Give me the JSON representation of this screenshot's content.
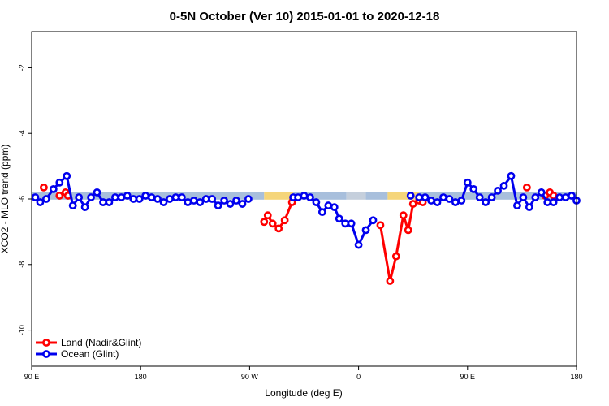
{
  "chart_data": {
    "type": "line",
    "title": "0-5N October (Ver 10)   2015-01-01 to 2020-12-18",
    "xlabel": "Longitude (deg E)",
    "ylabel": "XCO2 - MLO trend (ppm)",
    "xlim": [
      90,
      540
    ],
    "ylim": [
      -11.1,
      -0.9
    ],
    "x_ticks": [
      {
        "value": 90,
        "label": "90 E"
      },
      {
        "value": 180,
        "label": "180"
      },
      {
        "value": 270,
        "label": "90 W"
      },
      {
        "value": 360,
        "label": "0"
      },
      {
        "value": 450,
        "label": "90 E"
      },
      {
        "value": 540,
        "label": "180"
      }
    ],
    "y_ticks": [
      {
        "value": -2,
        "label": "-2"
      },
      {
        "value": -4,
        "label": "-4"
      },
      {
        "value": -6,
        "label": "-6"
      },
      {
        "value": -8,
        "label": "-8"
      },
      {
        "value": -10,
        "label": "-10"
      }
    ],
    "grid": false,
    "legend_position": "bottom-left",
    "band": {
      "y_center": -5.9,
      "half_width": 0.12,
      "segments": [
        {
          "from": 90,
          "to": 282,
          "color": "#a8bfdc"
        },
        {
          "from": 282,
          "to": 306,
          "color": "#f5d57a"
        },
        {
          "from": 306,
          "to": 350,
          "color": "#a8bfdc"
        },
        {
          "from": 350,
          "to": 366,
          "color": "#c5cfdc"
        },
        {
          "from": 366,
          "to": 384,
          "color": "#a8bfdc"
        },
        {
          "from": 384,
          "to": 410,
          "color": "#f5d57a"
        },
        {
          "from": 410,
          "to": 540,
          "color": "#a8bfdc"
        }
      ]
    },
    "series": [
      {
        "name": "Land (Nadir&Glint)",
        "color": "#ff0000",
        "segments": [
          [
            [
              100,
              -5.65
            ]
          ],
          [
            [
              113,
              -5.9
            ],
            [
              118,
              -5.8
            ],
            [
              120,
              -5.9
            ]
          ],
          [
            [
              282,
              -6.7
            ],
            [
              285,
              -6.5
            ],
            [
              289,
              -6.75
            ],
            [
              294,
              -6.9
            ],
            [
              299,
              -6.65
            ],
            [
              305,
              -6.1
            ]
          ],
          [
            [
              378,
              -6.8
            ],
            [
              386,
              -8.5
            ],
            [
              391,
              -7.75
            ],
            [
              397,
              -6.5
            ],
            [
              401,
              -6.95
            ],
            [
              405,
              -6.15
            ],
            [
              410,
              -6.05
            ],
            [
              413,
              -6.1
            ]
          ],
          [
            [
              499,
              -5.65
            ]
          ],
          [
            [
              514,
              -5.9
            ],
            [
              518,
              -5.8
            ],
            [
              521,
              -5.9
            ]
          ]
        ]
      },
      {
        "name": "Ocean (Glint)",
        "color": "#0000ee",
        "segments": [
          [
            [
              93,
              -5.95
            ],
            [
              97,
              -6.1
            ],
            [
              102,
              -6.0
            ],
            [
              108,
              -5.7
            ],
            [
              113,
              -5.5
            ],
            [
              119,
              -5.3
            ],
            [
              124,
              -6.2
            ],
            [
              129,
              -5.95
            ],
            [
              134,
              -6.25
            ],
            [
              139,
              -5.95
            ],
            [
              144,
              -5.8
            ],
            [
              149,
              -6.1
            ],
            [
              154,
              -6.1
            ],
            [
              159,
              -5.95
            ],
            [
              164,
              -5.95
            ],
            [
              169,
              -5.9
            ],
            [
              174,
              -6.0
            ],
            [
              179,
              -6.0
            ],
            [
              184,
              -5.9
            ],
            [
              189,
              -5.95
            ],
            [
              194,
              -6.0
            ],
            [
              199,
              -6.1
            ],
            [
              204,
              -6.0
            ],
            [
              209,
              -5.95
            ],
            [
              214,
              -5.95
            ],
            [
              219,
              -6.1
            ],
            [
              224,
              -6.05
            ],
            [
              229,
              -6.1
            ],
            [
              234,
              -6.0
            ],
            [
              239,
              -6.0
            ],
            [
              244,
              -6.2
            ],
            [
              249,
              -6.05
            ],
            [
              254,
              -6.15
            ],
            [
              259,
              -6.05
            ],
            [
              264,
              -6.15
            ],
            [
              269,
              -6.0
            ]
          ],
          [
            [
              306,
              -5.95
            ],
            [
              310,
              -5.95
            ],
            [
              315,
              -5.9
            ],
            [
              320,
              -5.95
            ],
            [
              325,
              -6.1
            ],
            [
              330,
              -6.4
            ],
            [
              335,
              -6.2
            ],
            [
              340,
              -6.25
            ],
            [
              344,
              -6.6
            ],
            [
              349,
              -6.75
            ],
            [
              354,
              -6.75
            ],
            [
              360,
              -7.4
            ],
            [
              366,
              -6.95
            ],
            [
              372,
              -6.65
            ]
          ],
          [
            [
              403,
              -5.9
            ]
          ],
          [
            [
              410,
              -5.95
            ],
            [
              415,
              -5.95
            ],
            [
              420,
              -6.05
            ],
            [
              425,
              -6.1
            ],
            [
              430,
              -5.95
            ],
            [
              435,
              -6.0
            ],
            [
              440,
              -6.1
            ],
            [
              445,
              -6.05
            ],
            [
              450,
              -5.5
            ],
            [
              455,
              -5.7
            ],
            [
              460,
              -5.95
            ],
            [
              465,
              -6.1
            ],
            [
              470,
              -5.95
            ],
            [
              475,
              -5.75
            ],
            [
              480,
              -5.6
            ],
            [
              486,
              -5.3
            ],
            [
              491,
              -6.2
            ],
            [
              496,
              -5.95
            ],
            [
              501,
              -6.25
            ],
            [
              506,
              -5.95
            ],
            [
              511,
              -5.8
            ],
            [
              516,
              -6.1
            ],
            [
              521,
              -6.1
            ],
            [
              526,
              -5.95
            ],
            [
              531,
              -5.95
            ],
            [
              536,
              -5.9
            ],
            [
              540,
              -6.05
            ]
          ]
        ]
      }
    ]
  }
}
